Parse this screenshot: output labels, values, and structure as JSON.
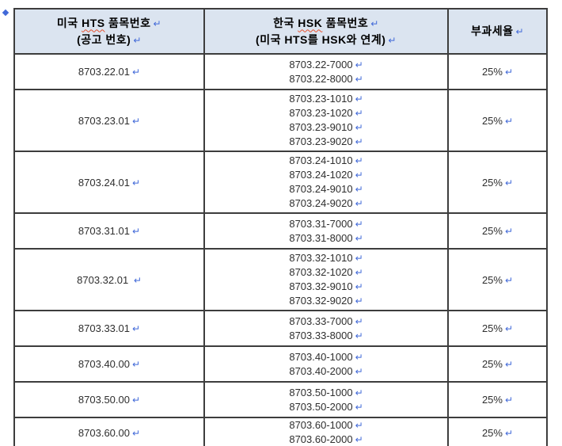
{
  "marks": {
    "return_mark": "↵"
  },
  "colors": {
    "header_bg": "#dbe4f0",
    "border": "#3d3d3d",
    "body_text": "#2e2e2e",
    "return_mark_blue": "#4169d8",
    "spellcheck_squiggle": "#e8502d"
  },
  "table": {
    "header": {
      "col1": {
        "line1_pre": "미국 ",
        "line1_term": "HTS",
        "line1_post": " 품목번호",
        "line2": "(공고 번호)"
      },
      "col2": {
        "line1_pre": "한국 ",
        "line1_term": "HSK",
        "line1_post": " 품목번호",
        "line2": "(미국 HTS를 HSK와 연계)"
      },
      "col3": {
        "label": "부과세율"
      }
    },
    "rows": [
      {
        "hts": "8703.22.01",
        "hsk": [
          "8703.22-7000",
          "8703.22-8000"
        ],
        "rate": "25%"
      },
      {
        "hts": "8703.23.01",
        "hsk": [
          "8703.23-1010",
          "8703.23-1020",
          "8703.23-9010",
          "8703.23-9020"
        ],
        "rate": "25%"
      },
      {
        "hts": "8703.24.01",
        "hsk": [
          "8703.24-1010",
          "8703.24-1020",
          "8703.24-9010",
          "8703.24-9020"
        ],
        "rate": "25%"
      },
      {
        "hts": "8703.31.01",
        "hsk": [
          "8703.31-7000",
          "8703.31-8000"
        ],
        "rate": "25%"
      },
      {
        "hts": "8703.32.01 ",
        "hsk": [
          "8703.32-1010",
          "8703.32-1020",
          "8703.32-9010",
          "8703.32-9020"
        ],
        "rate": "25%"
      },
      {
        "hts": "8703.33.01",
        "hsk": [
          "8703.33-7000",
          "8703.33-8000"
        ],
        "rate": "25%"
      },
      {
        "hts": "8703.40.00",
        "hsk": [
          "8703.40-1000",
          "8703.40-2000"
        ],
        "rate": "25%"
      },
      {
        "hts": "8703.50.00",
        "hsk": [
          "8703.50-1000",
          "8703.50-2000"
        ],
        "rate": "25%"
      },
      {
        "hts": "8703.60.00",
        "hsk": [
          "8703.60-1000",
          "8703.60-2000"
        ],
        "rate": "25%"
      }
    ]
  }
}
